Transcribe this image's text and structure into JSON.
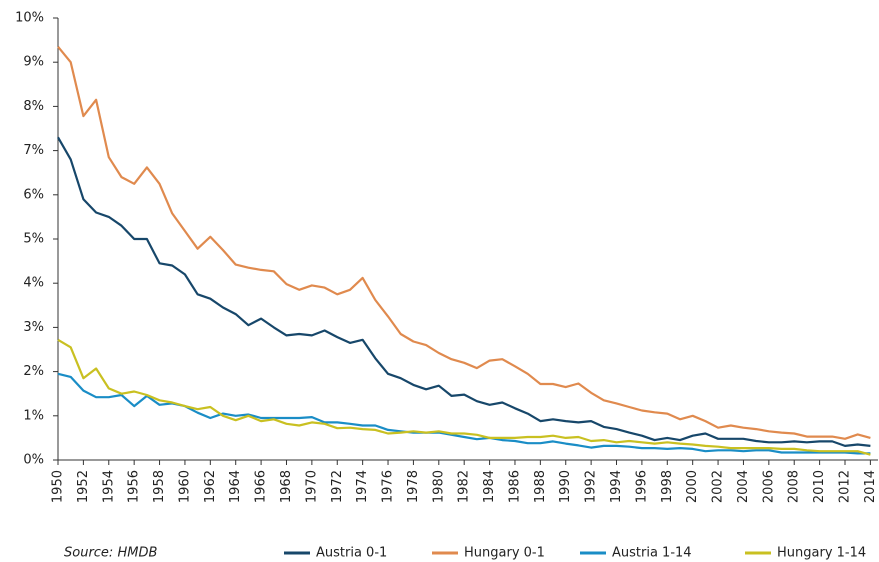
{
  "chart_data": {
    "type": "line",
    "source": "Source: HMDB",
    "x": [
      1950,
      1951,
      1952,
      1953,
      1954,
      1955,
      1956,
      1957,
      1958,
      1959,
      1960,
      1961,
      1962,
      1963,
      1964,
      1965,
      1966,
      1967,
      1968,
      1969,
      1970,
      1971,
      1972,
      1973,
      1974,
      1975,
      1976,
      1977,
      1978,
      1979,
      1980,
      1981,
      1982,
      1983,
      1984,
      1985,
      1986,
      1987,
      1988,
      1989,
      1990,
      1991,
      1992,
      1993,
      1994,
      1995,
      1996,
      1997,
      1998,
      1999,
      2000,
      2001,
      2002,
      2003,
      2004,
      2005,
      2006,
      2007,
      2008,
      2009,
      2010,
      2011,
      2012,
      2013,
      2014
    ],
    "xlim": [
      1950,
      2014.6
    ],
    "xticks": [
      1950,
      1952,
      1954,
      1956,
      1958,
      1960,
      1962,
      1964,
      1966,
      1968,
      1970,
      1972,
      1974,
      1976,
      1978,
      1980,
      1982,
      1984,
      1986,
      1988,
      1990,
      1992,
      1994,
      1996,
      1998,
      2000,
      2002,
      2004,
      2006,
      2008,
      2010,
      2012,
      2014
    ],
    "ylim": [
      0,
      10
    ],
    "yticks": [
      {
        "value": 0,
        "label": "0%"
      },
      {
        "value": 1,
        "label": "1%"
      },
      {
        "value": 2,
        "label": "2%"
      },
      {
        "value": 3,
        "label": "3%"
      },
      {
        "value": 4,
        "label": "4%"
      },
      {
        "value": 5,
        "label": "5%"
      },
      {
        "value": 6,
        "label": "6%"
      },
      {
        "value": 7,
        "label": "7%"
      },
      {
        "value": 8,
        "label": "8%"
      },
      {
        "value": 9,
        "label": "9%"
      },
      {
        "value": 10,
        "label": "10%"
      }
    ],
    "grid": false,
    "series": [
      {
        "name": "Austria 0-1",
        "color": "#17476a",
        "values": [
          7.3,
          6.8,
          5.9,
          5.6,
          5.5,
          5.3,
          5.0,
          5.0,
          4.45,
          4.4,
          4.2,
          3.75,
          3.65,
          3.45,
          3.3,
          3.05,
          3.2,
          3.0,
          2.82,
          2.85,
          2.82,
          2.93,
          2.78,
          2.65,
          2.72,
          2.3,
          1.95,
          1.85,
          1.7,
          1.6,
          1.68,
          1.45,
          1.48,
          1.33,
          1.25,
          1.3,
          1.17,
          1.05,
          0.88,
          0.92,
          0.88,
          0.85,
          0.88,
          0.75,
          0.7,
          0.62,
          0.55,
          0.45,
          0.5,
          0.45,
          0.55,
          0.6,
          0.48,
          0.48,
          0.48,
          0.43,
          0.4,
          0.4,
          0.42,
          0.4,
          0.42,
          0.42,
          0.32,
          0.35,
          0.32
        ]
      },
      {
        "name": "Hungary 0-1",
        "color": "#e08a4e",
        "values": [
          9.35,
          9.0,
          7.78,
          8.15,
          6.85,
          6.4,
          6.25,
          6.62,
          6.25,
          5.58,
          5.18,
          4.78,
          5.05,
          4.75,
          4.42,
          4.35,
          4.3,
          4.27,
          3.98,
          3.85,
          3.95,
          3.9,
          3.75,
          3.85,
          4.12,
          3.62,
          3.25,
          2.85,
          2.68,
          2.6,
          2.42,
          2.28,
          2.2,
          2.08,
          2.25,
          2.28,
          2.12,
          1.95,
          1.72,
          1.72,
          1.65,
          1.73,
          1.52,
          1.35,
          1.28,
          1.2,
          1.12,
          1.08,
          1.05,
          0.92,
          1.0,
          0.88,
          0.73,
          0.78,
          0.73,
          0.7,
          0.65,
          0.62,
          0.6,
          0.53,
          0.53,
          0.53,
          0.48,
          0.58,
          0.5
        ]
      },
      {
        "name": "Austria 1-14",
        "color": "#1a8dc6",
        "values": [
          1.95,
          1.88,
          1.57,
          1.42,
          1.42,
          1.47,
          1.22,
          1.45,
          1.25,
          1.28,
          1.22,
          1.07,
          0.95,
          1.05,
          1.0,
          1.03,
          0.95,
          0.95,
          0.95,
          0.95,
          0.97,
          0.85,
          0.85,
          0.82,
          0.78,
          0.78,
          0.68,
          0.65,
          0.62,
          0.62,
          0.62,
          0.57,
          0.52,
          0.47,
          0.5,
          0.45,
          0.43,
          0.38,
          0.38,
          0.42,
          0.37,
          0.33,
          0.28,
          0.32,
          0.32,
          0.3,
          0.27,
          0.27,
          0.25,
          0.27,
          0.25,
          0.2,
          0.22,
          0.22,
          0.2,
          0.22,
          0.22,
          0.17,
          0.17,
          0.17,
          0.17,
          0.17,
          0.17,
          0.15,
          0.15
        ]
      },
      {
        "name": "Hungary 1-14",
        "color": "#c9c021",
        "values": [
          2.72,
          2.55,
          1.85,
          2.07,
          1.62,
          1.5,
          1.55,
          1.47,
          1.35,
          1.3,
          1.22,
          1.15,
          1.2,
          1.0,
          0.9,
          1.0,
          0.88,
          0.92,
          0.82,
          0.78,
          0.85,
          0.82,
          0.72,
          0.73,
          0.7,
          0.68,
          0.6,
          0.62,
          0.65,
          0.62,
          0.65,
          0.6,
          0.6,
          0.57,
          0.5,
          0.5,
          0.5,
          0.52,
          0.52,
          0.55,
          0.5,
          0.52,
          0.43,
          0.45,
          0.4,
          0.43,
          0.4,
          0.37,
          0.4,
          0.37,
          0.35,
          0.32,
          0.3,
          0.27,
          0.27,
          0.27,
          0.27,
          0.25,
          0.25,
          0.22,
          0.2,
          0.2,
          0.2,
          0.2,
          0.12
        ]
      }
    ]
  }
}
